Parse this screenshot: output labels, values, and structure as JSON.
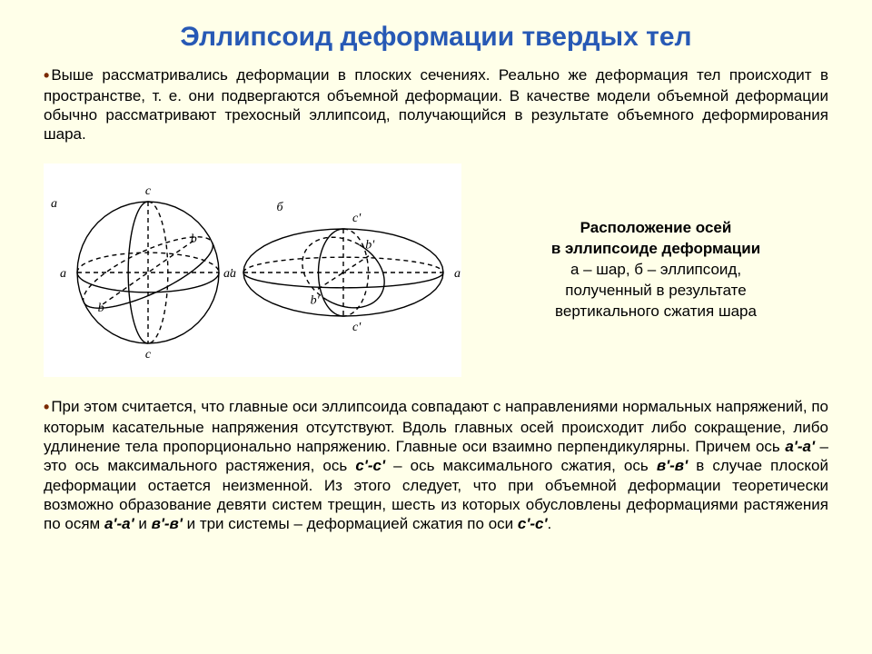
{
  "title": "Эллипсоид деформации твердых тел",
  "para1_lead": "Выше рассматривались деформации в плоских сечениях. Реально же деформация тел происходит в пространстве, т. е. они подвергаются объемной деформации. В качестве модели объемной деформации обычно рассматривают трехосный эллипсоид, получающийся в результате объемного деформирования шара.",
  "caption": {
    "l1": "Расположение осей",
    "l2": "в эллипсоиде деформации",
    "l3": "а – шар, б – эллипсоид,",
    "l4": "полученный в результате",
    "l5": "вертикального сжатия шара"
  },
  "para2_a": "При этом считается, что главные оси эллипсоида совпадают с направлениями нормальных напряжений, по которым касательные напряжения отсутствуют. Вдоль главных осей происходит либо сокращение, либо удлинение тела пропорционально напряжению. Главные оси взаимно перпендикулярны. Причем ось ",
  "axis1": "а'-а'",
  "para2_b": " – это ось максимального растяжения, ось ",
  "axis2": "с'-с'",
  "para2_c": " – ось максимального сжатия, ось ",
  "axis3": "в'-в'",
  "para2_d": " в случае плоской деформации остается неизменной. Из этого следует, что при объемной деформации теоретически возможно образование девяти систем трещин, шесть из которых обусловлены деформациями растяжения по осям ",
  "axis1b": "а'-а'",
  "para2_e": " и ",
  "axis3b": "в'-в'",
  "para2_f": " и три системы – деформацией сжатия по оси ",
  "axis2b": "с'-с'",
  "para2_g": ".",
  "figure": {
    "labels": {
      "sphere_tag": "а",
      "ellipsoid_tag": "б",
      "a": "a",
      "b": "b",
      "c": "c",
      "ap": "a'",
      "bp": "b'",
      "cp": "c'"
    },
    "style": {
      "stroke": "#000000",
      "stroke_width": 1.4,
      "dash": "5,4",
      "font_size": 14,
      "font_family": "serif",
      "font_style": "italic"
    }
  }
}
